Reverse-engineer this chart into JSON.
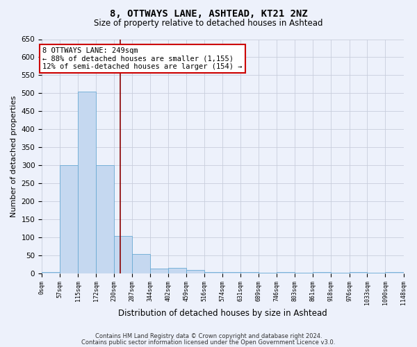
{
  "title": "8, OTTWAYS LANE, ASHTEAD, KT21 2NZ",
  "subtitle": "Size of property relative to detached houses in Ashtead",
  "xlabel": "Distribution of detached houses by size in Ashtead",
  "ylabel": "Number of detached properties",
  "footnote1": "Contains HM Land Registry data © Crown copyright and database right 2024.",
  "footnote2": "Contains public sector information licensed under the Open Government Licence v3.0.",
  "bin_edges": [
    0,
    57,
    115,
    172,
    230,
    287,
    344,
    402,
    459,
    516,
    574,
    631,
    689,
    746,
    803,
    861,
    918,
    976,
    1033,
    1090,
    1148
  ],
  "bar_heights": [
    5,
    300,
    505,
    300,
    105,
    55,
    14,
    15,
    10,
    5,
    5,
    5,
    3,
    5,
    3,
    5,
    3,
    5,
    3,
    5
  ],
  "bar_color": "#c5d8f0",
  "bar_edge_color": "#6aaad4",
  "property_line_x": 249,
  "property_line_color": "#8b0000",
  "annotation_title": "8 OTTWAYS LANE: 249sqm",
  "annotation_line1": "← 88% of detached houses are smaller (1,155)",
  "annotation_line2": "12% of semi-detached houses are larger (154) →",
  "annotation_box_color": "#ffffff",
  "annotation_box_edge_color": "#cc0000",
  "ylim": [
    0,
    650
  ],
  "ytick_interval": 50,
  "background_color": "#edf1fb",
  "grid_color": "#c8cedc",
  "title_fontsize": 10,
  "subtitle_fontsize": 8.5,
  "xlabel_fontsize": 8.5,
  "ylabel_fontsize": 8,
  "xtick_fontsize": 6,
  "ytick_fontsize": 7.5,
  "footnote_fontsize": 6,
  "annot_fontsize": 7.5
}
